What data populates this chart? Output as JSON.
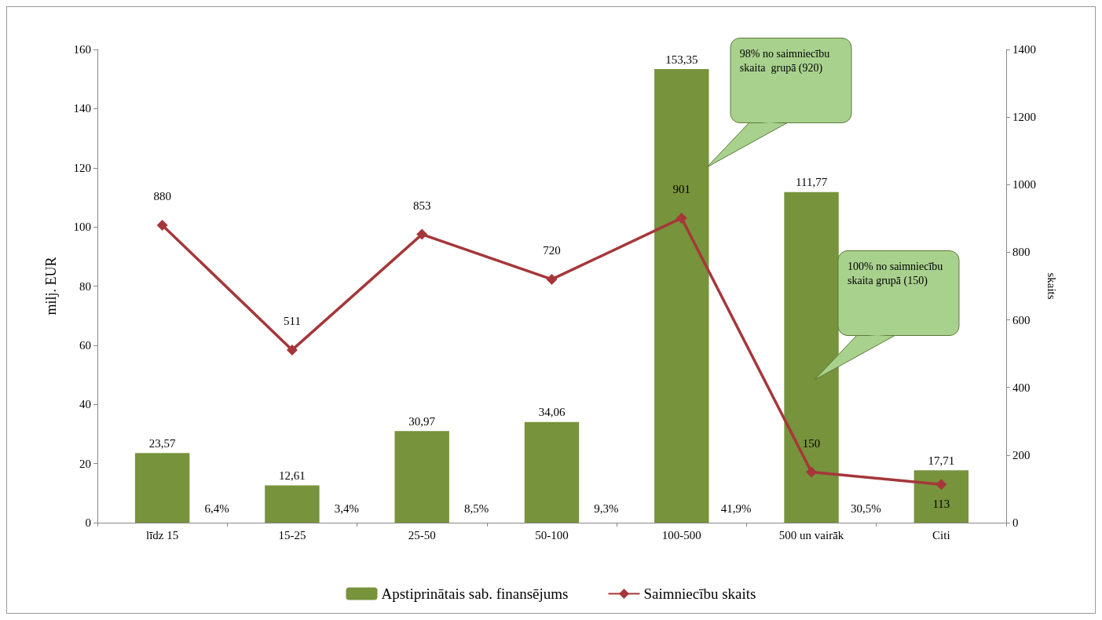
{
  "chart_data": {
    "type": "bar",
    "categories": [
      "līdz 15",
      "15-25",
      "25-50",
      "50-100",
      "100-500",
      "500 un vairāk",
      "Citi"
    ],
    "ylabel": "milj. EUR",
    "y2label": "skaits",
    "ylim": [
      0,
      160
    ],
    "yticks": [
      0,
      20,
      40,
      60,
      80,
      100,
      120,
      140,
      160
    ],
    "y2lim": [
      0,
      1400
    ],
    "y2ticks": [
      0,
      200,
      400,
      600,
      800,
      1000,
      1200,
      1400
    ],
    "series": [
      {
        "name": "Apstiprinātais sab. finansējums",
        "color": "#77933c",
        "values": [
          23.57,
          12.61,
          30.97,
          34.06,
          153.35,
          111.77,
          17.71
        ],
        "value_labels": [
          "23,57",
          "12,61",
          "30,97",
          "34,06",
          "153,35",
          "111,77",
          "17,71"
        ]
      },
      {
        "name": "Saimniecību skaits",
        "type": "line",
        "axis": "y2",
        "color": "#a5373a",
        "marker": "diamond",
        "values": [
          880,
          511,
          853,
          720,
          901,
          150,
          113
        ],
        "data_labels": true
      }
    ],
    "annotations": [
      "6,4%",
      "3,4%",
      "8,5%",
      "9,3%",
      "41,9%",
      "30,5%",
      "98% no saimniecību skaita  grupā (920)",
      "100% no saimniecību skaita grupā (150)"
    ],
    "grid": false,
    "legend": "bottom"
  }
}
